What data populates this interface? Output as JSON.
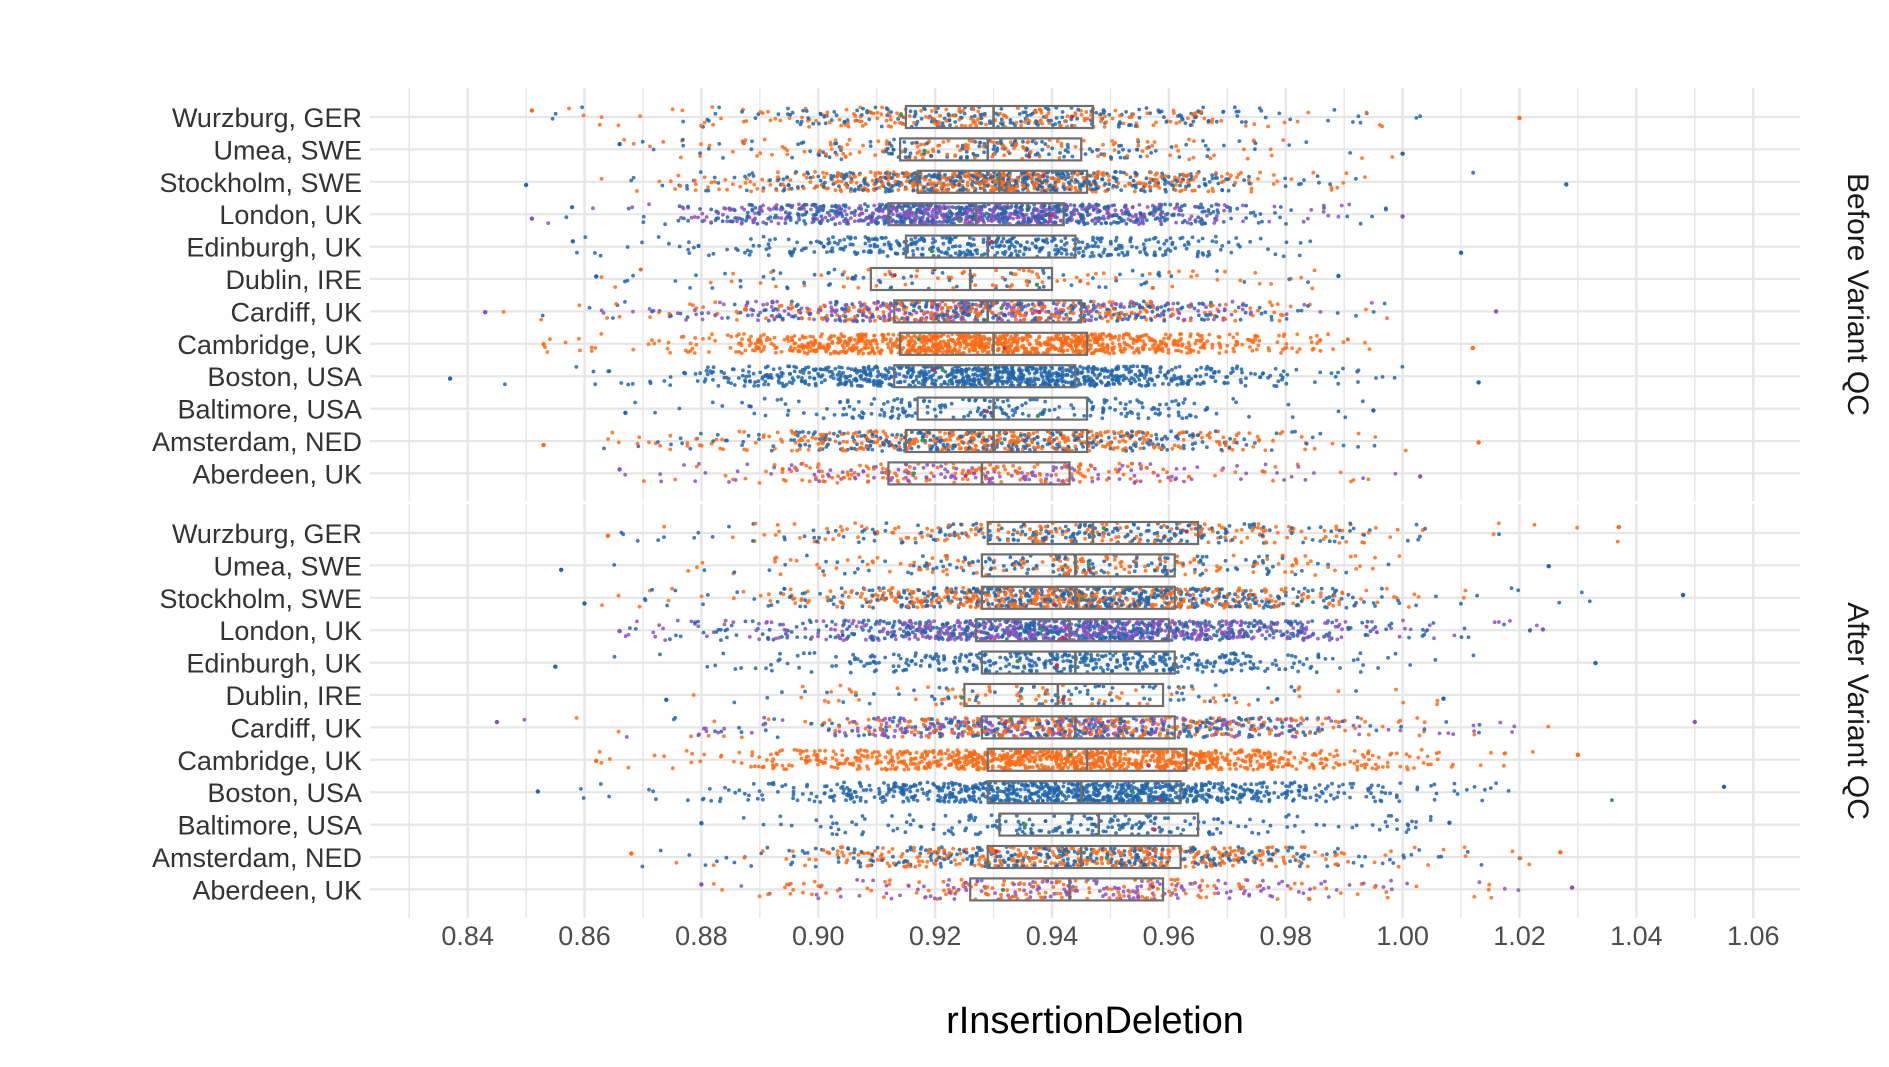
{
  "chart_data": {
    "type": "jitter-boxplot",
    "xlabel": "rInsertionDeletion",
    "xlim": [
      0.825,
      1.068
    ],
    "x_ticks": [
      0.84,
      0.86,
      0.88,
      0.9,
      0.92,
      0.94,
      0.96,
      0.98,
      1.0,
      1.02,
      1.04,
      1.06
    ],
    "x_tick_labels": [
      "0.84",
      "0.86",
      "0.88",
      "0.90",
      "0.92",
      "0.94",
      "0.96",
      "0.98",
      "1.00",
      "1.02",
      "1.04",
      "1.06"
    ],
    "grid": true,
    "colors": {
      "blue": "#2166ac",
      "orange": "#ff6a13",
      "purple": "#8e4fbf",
      "green": "#3a9a4a",
      "red": "#c8304a",
      "box": "#6e6e6e",
      "grid": "#e6e6e6"
    },
    "categories": [
      "Wurzburg, GER",
      "Umea, SWE",
      "Stockholm, SWE",
      "London, UK",
      "Edinburgh, UK",
      "Dublin, IRE",
      "Cardiff, UK",
      "Cambridge, UK",
      "Boston, USA",
      "Baltimore, USA",
      "Amsterdam, NED",
      "Aberdeen, UK"
    ],
    "facets": [
      {
        "label": "Before Variant QC",
        "boxes": [
          {
            "site": "Wurzburg, GER",
            "q1": 0.915,
            "median": 0.93,
            "q3": 0.947,
            "min": 0.851,
            "max": 1.02,
            "n": 420,
            "colors": [
              "orange",
              "blue"
            ]
          },
          {
            "site": "Umea, SWE",
            "q1": 0.914,
            "median": 0.929,
            "q3": 0.945,
            "min": 0.866,
            "max": 1.0,
            "n": 300,
            "colors": [
              "blue",
              "orange"
            ]
          },
          {
            "site": "Stockholm, SWE",
            "q1": 0.917,
            "median": 0.931,
            "q3": 0.946,
            "min": 0.85,
            "max": 1.028,
            "n": 900,
            "colors": [
              "blue",
              "orange"
            ]
          },
          {
            "site": "London, UK",
            "q1": 0.912,
            "median": 0.927,
            "q3": 0.942,
            "min": 0.851,
            "max": 1.0,
            "n": 1100,
            "colors": [
              "purple",
              "blue"
            ]
          },
          {
            "site": "Edinburgh, UK",
            "q1": 0.915,
            "median": 0.929,
            "q3": 0.944,
            "min": 0.858,
            "max": 1.01,
            "n": 420,
            "colors": [
              "blue"
            ]
          },
          {
            "site": "Dublin, IRE",
            "q1": 0.909,
            "median": 0.926,
            "q3": 0.94,
            "min": 0.862,
            "max": 0.989,
            "n": 160,
            "colors": [
              "blue",
              "orange"
            ]
          },
          {
            "site": "Cardiff, UK",
            "q1": 0.913,
            "median": 0.929,
            "q3": 0.945,
            "min": 0.843,
            "max": 1.016,
            "n": 800,
            "colors": [
              "purple",
              "blue",
              "orange"
            ]
          },
          {
            "site": "Cambridge, UK",
            "q1": 0.914,
            "median": 0.93,
            "q3": 0.946,
            "min": 0.853,
            "max": 1.012,
            "n": 1000,
            "colors": [
              "orange"
            ]
          },
          {
            "site": "Boston, USA",
            "q1": 0.913,
            "median": 0.929,
            "q3": 0.944,
            "min": 0.837,
            "max": 1.013,
            "n": 900,
            "colors": [
              "blue"
            ]
          },
          {
            "site": "Baltimore, USA",
            "q1": 0.917,
            "median": 0.93,
            "q3": 0.946,
            "min": 0.867,
            "max": 0.995,
            "n": 220,
            "colors": [
              "blue"
            ]
          },
          {
            "site": "Amsterdam, NED",
            "q1": 0.915,
            "median": 0.93,
            "q3": 0.946,
            "min": 0.853,
            "max": 1.013,
            "n": 700,
            "colors": [
              "orange",
              "blue"
            ]
          },
          {
            "site": "Aberdeen, UK",
            "q1": 0.912,
            "median": 0.928,
            "q3": 0.943,
            "min": 0.866,
            "max": 1.003,
            "n": 320,
            "colors": [
              "purple",
              "orange"
            ]
          }
        ]
      },
      {
        "label": "After Variant QC",
        "boxes": [
          {
            "site": "Wurzburg, GER",
            "q1": 0.929,
            "median": 0.947,
            "q3": 0.965,
            "min": 0.864,
            "max": 1.037,
            "n": 420,
            "colors": [
              "orange",
              "blue"
            ]
          },
          {
            "site": "Umea, SWE",
            "q1": 0.928,
            "median": 0.944,
            "q3": 0.961,
            "min": 0.856,
            "max": 1.025,
            "n": 300,
            "colors": [
              "blue",
              "orange"
            ]
          },
          {
            "site": "Stockholm, SWE",
            "q1": 0.928,
            "median": 0.944,
            "q3": 0.961,
            "min": 0.86,
            "max": 1.048,
            "n": 900,
            "colors": [
              "blue",
              "orange"
            ]
          },
          {
            "site": "London, UK",
            "q1": 0.927,
            "median": 0.943,
            "q3": 0.96,
            "min": 0.866,
            "max": 1.024,
            "n": 1100,
            "colors": [
              "purple",
              "blue"
            ]
          },
          {
            "site": "Edinburgh, UK",
            "q1": 0.928,
            "median": 0.944,
            "q3": 0.961,
            "min": 0.855,
            "max": 1.033,
            "n": 420,
            "colors": [
              "blue"
            ]
          },
          {
            "site": "Dublin, IRE",
            "q1": 0.925,
            "median": 0.941,
            "q3": 0.959,
            "min": 0.874,
            "max": 1.007,
            "n": 160,
            "colors": [
              "blue",
              "orange"
            ]
          },
          {
            "site": "Cardiff, UK",
            "q1": 0.928,
            "median": 0.944,
            "q3": 0.961,
            "min": 0.845,
            "max": 1.05,
            "n": 800,
            "colors": [
              "purple",
              "blue",
              "orange"
            ]
          },
          {
            "site": "Cambridge, UK",
            "q1": 0.929,
            "median": 0.946,
            "q3": 0.963,
            "min": 0.862,
            "max": 1.03,
            "n": 1000,
            "colors": [
              "orange"
            ]
          },
          {
            "site": "Boston, USA",
            "q1": 0.929,
            "median": 0.945,
            "q3": 0.962,
            "min": 0.852,
            "max": 1.055,
            "n": 900,
            "colors": [
              "blue"
            ]
          },
          {
            "site": "Baltimore, USA",
            "q1": 0.931,
            "median": 0.948,
            "q3": 0.965,
            "min": 0.88,
            "max": 1.008,
            "n": 220,
            "colors": [
              "blue"
            ]
          },
          {
            "site": "Amsterdam, NED",
            "q1": 0.929,
            "median": 0.945,
            "q3": 0.962,
            "min": 0.868,
            "max": 1.027,
            "n": 700,
            "colors": [
              "orange",
              "blue"
            ]
          },
          {
            "site": "Aberdeen, UK",
            "q1": 0.926,
            "median": 0.943,
            "q3": 0.959,
            "min": 0.88,
            "max": 1.029,
            "n": 320,
            "colors": [
              "purple",
              "orange"
            ]
          }
        ]
      }
    ]
  }
}
